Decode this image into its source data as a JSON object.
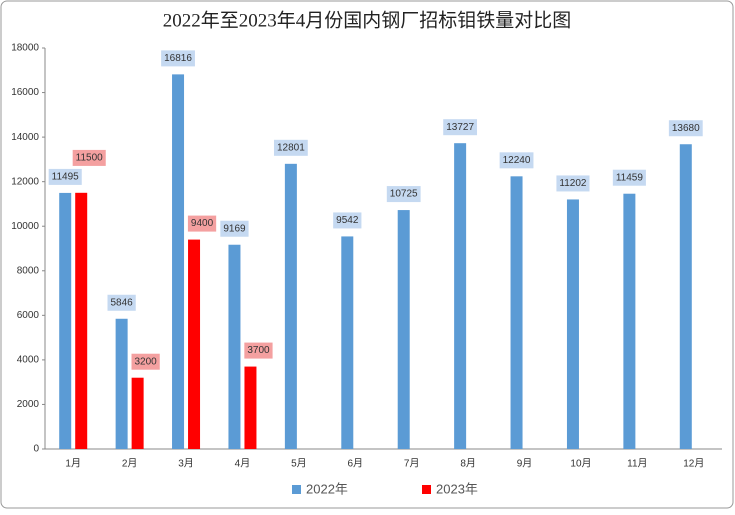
{
  "chart_data": {
    "type": "bar",
    "title": "2022年至2023年4月份国内钢厂招标钼铁量对比图",
    "categories": [
      "1月",
      "2月",
      "3月",
      "4月",
      "5月",
      "6月",
      "7月",
      "8月",
      "9月",
      "10月",
      "11月",
      "12月"
    ],
    "series": [
      {
        "name": "2022年",
        "color": "#5b9bd5",
        "label_color": "#c5d9f1",
        "values": [
          11495,
          5846,
          16816,
          9169,
          12801,
          9542,
          10725,
          13727,
          12240,
          11202,
          11459,
          13680
        ]
      },
      {
        "name": "2023年",
        "color": "#ff0000",
        "label_color": "#f4a0a0",
        "values": [
          11500,
          3200,
          9400,
          3700,
          null,
          null,
          null,
          null,
          null,
          null,
          null,
          null
        ]
      }
    ],
    "ylim": [
      0,
      18000
    ],
    "yticks": [
      0,
      2000,
      4000,
      6000,
      8000,
      10000,
      12000,
      14000,
      16000,
      18000
    ],
    "grid": false,
    "legend": "bottom"
  }
}
